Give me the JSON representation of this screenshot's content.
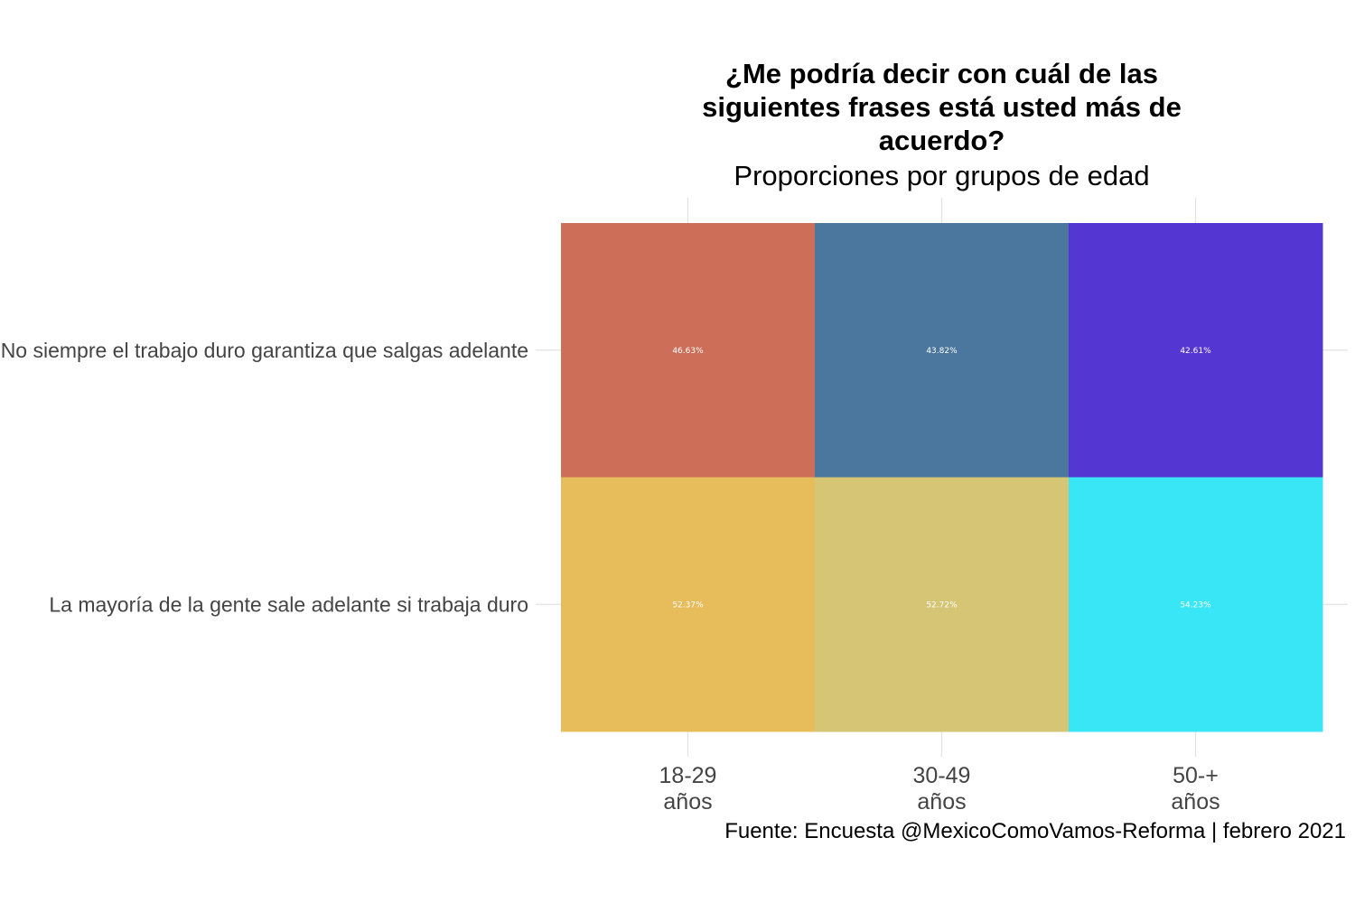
{
  "chart_data": {
    "type": "heatmap",
    "title_lines": [
      "¿Me podría decir con cuál de las",
      "siguientes frases está usted más de",
      "acuerdo?"
    ],
    "subtitle": "Proporciones por grupos de edad",
    "x_categories": [
      {
        "lines": [
          "18-29",
          "años"
        ]
      },
      {
        "lines": [
          "30-49",
          "años"
        ]
      },
      {
        "lines": [
          "50-+",
          "años"
        ]
      }
    ],
    "y_categories": [
      "No siempre el trabajo duro garantiza que salgas adelante",
      "La mayoría de la gente sale adelante si trabaja duro"
    ],
    "cells": [
      [
        {
          "value": 46.63,
          "label": "46.63%",
          "color": "#CC6E58"
        },
        {
          "value": 43.82,
          "label": "43.82%",
          "color": "#4B769D"
        },
        {
          "value": 42.61,
          "label": "42.61%",
          "color": "#5436D2"
        }
      ],
      [
        {
          "value": 52.37,
          "label": "52.37%",
          "color": "#E7BC5B"
        },
        {
          "value": 52.72,
          "label": "52.72%",
          "color": "#D5C574"
        },
        {
          "value": 54.23,
          "label": "54.23%",
          "color": "#38E6F6"
        }
      ]
    ],
    "caption": "Fuente: Encuesta @MexicoComoVamos-Reforma | febrero 2021",
    "grid": true,
    "legend": "none"
  }
}
